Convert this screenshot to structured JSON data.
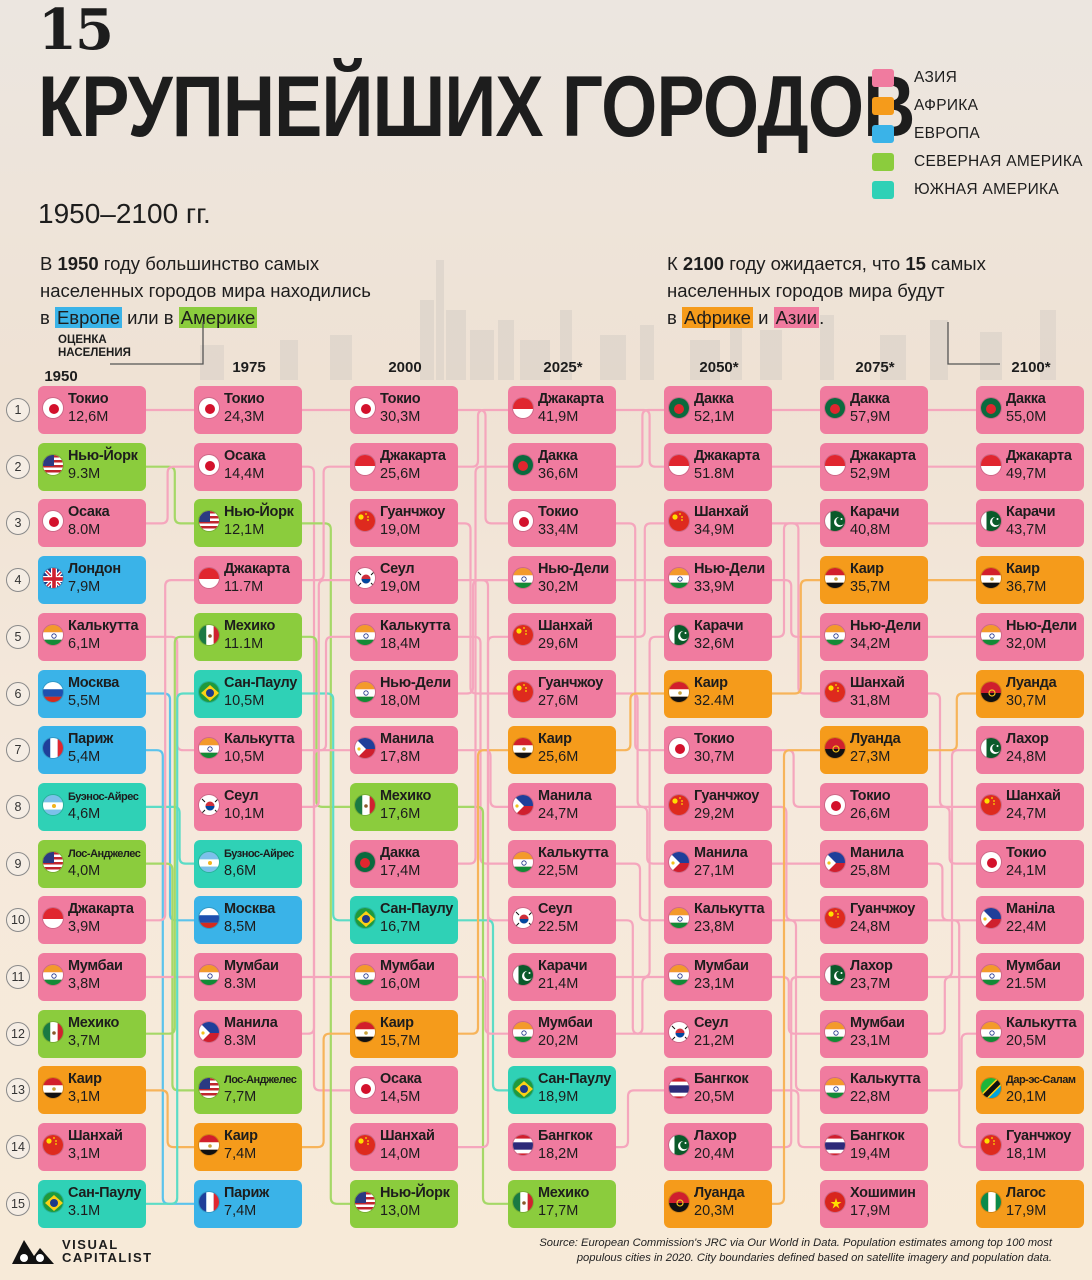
{
  "header": {
    "number": "15",
    "title": "КРУПНЕЙШИХ ГОРОДОВ",
    "years": "1950–2100 гг.",
    "intro_left": {
      "t1": "В ",
      "b1": "1950",
      "t2": " году большинство самых",
      "line2": "населенных городов мира находились",
      "t3": "в ",
      "hl1": "Европе",
      "t4": " или в ",
      "hl2": "Америке"
    },
    "intro_right": {
      "t1": "К ",
      "b1": "2100",
      "t2": " году ожидается, что ",
      "b2": "15",
      "t3": " самых",
      "line2": "населенных городов мира будут",
      "t4": "в ",
      "hl1": "Африке",
      "t5": " и ",
      "hl2": "Азии",
      "t6": "."
    }
  },
  "legend": [
    {
      "label": "АЗИЯ",
      "color": "#f07b9f"
    },
    {
      "label": "АФРИКА",
      "color": "#f59b1b"
    },
    {
      "label": "ЕВРОПА",
      "color": "#3ab3e8"
    },
    {
      "label": "СЕВЕРНАЯ АМЕРИКА",
      "color": "#8bcc3d"
    },
    {
      "label": "ЮЖНАЯ АМЕРИКА",
      "color": "#2fd1b6"
    }
  ],
  "estimate_label": "ОЦЕНКА\nНАСЕЛЕНИЯ",
  "ranks": [
    "1",
    "2",
    "3",
    "4",
    "5",
    "6",
    "7",
    "8",
    "9",
    "10",
    "11",
    "12",
    "13",
    "14",
    "15"
  ],
  "columns": [
    {
      "year": "1950",
      "cities": [
        {
          "name": "Токио",
          "value": "12,6M",
          "region": "asia",
          "flag": "jp"
        },
        {
          "name": "Нью-Йорк",
          "value": "9.3M",
          "region": "na",
          "flag": "us"
        },
        {
          "name": "Осака",
          "value": "8.0M",
          "region": "asia",
          "flag": "jp"
        },
        {
          "name": "Лондон",
          "value": "7,9M",
          "region": "eu",
          "flag": "gb"
        },
        {
          "name": "Калькутта",
          "value": "6,1M",
          "region": "asia",
          "flag": "in"
        },
        {
          "name": "Москва",
          "value": "5,5M",
          "region": "eu",
          "flag": "ru"
        },
        {
          "name": "Париж",
          "value": "5,4M",
          "region": "eu",
          "flag": "fr"
        },
        {
          "name": "Буэнос-Айрес",
          "value": "4,6M",
          "region": "sa",
          "flag": "ar"
        },
        {
          "name": "Лос-Анджелес",
          "value": "4,0M",
          "region": "na",
          "flag": "us"
        },
        {
          "name": "Джакарта",
          "value": "3,9M",
          "region": "asia",
          "flag": "id"
        },
        {
          "name": "Мумбаи",
          "value": "3,8M",
          "region": "asia",
          "flag": "in"
        },
        {
          "name": "Мехико",
          "value": "3,7M",
          "region": "na",
          "flag": "mx"
        },
        {
          "name": "Каир",
          "value": "3,1M",
          "region": "af",
          "flag": "eg"
        },
        {
          "name": "Шанхай",
          "value": "3,1M",
          "region": "asia",
          "flag": "cn"
        },
        {
          "name": "Сан-Паулу",
          "value": "3.1M",
          "region": "sa",
          "flag": "br"
        }
      ]
    },
    {
      "year": "1975",
      "cities": [
        {
          "name": "Токио",
          "value": "24,3M",
          "region": "asia",
          "flag": "jp"
        },
        {
          "name": "Осака",
          "value": "14,4M",
          "region": "asia",
          "flag": "jp"
        },
        {
          "name": "Нью-Йорк",
          "value": "12,1M",
          "region": "na",
          "flag": "us"
        },
        {
          "name": "Джакарта",
          "value": "11.7M",
          "region": "asia",
          "flag": "id"
        },
        {
          "name": "Мехико",
          "value": "11.1M",
          "region": "na",
          "flag": "mx"
        },
        {
          "name": "Сан-Паулу",
          "value": "10,5M",
          "region": "sa",
          "flag": "br"
        },
        {
          "name": "Калькутта",
          "value": "10,5M",
          "region": "asia",
          "flag": "in"
        },
        {
          "name": "Сеул",
          "value": "10,1M",
          "region": "asia",
          "flag": "kr"
        },
        {
          "name": "Бузнос-Айрес",
          "value": "8,6M",
          "region": "sa",
          "flag": "ar"
        },
        {
          "name": "Москва",
          "value": "8,5M",
          "region": "eu",
          "flag": "ru"
        },
        {
          "name": "Мумбаи",
          "value": "8.3M",
          "region": "asia",
          "flag": "in"
        },
        {
          "name": "Манила",
          "value": "8.3M",
          "region": "asia",
          "flag": "ph"
        },
        {
          "name": "Лос-Анджелес",
          "value": "7,7M",
          "region": "na",
          "flag": "us"
        },
        {
          "name": "Каир",
          "value": "7,4M",
          "region": "af",
          "flag": "eg"
        },
        {
          "name": "Париж",
          "value": "7,4M",
          "region": "eu",
          "flag": "fr"
        }
      ]
    },
    {
      "year": "2000",
      "cities": [
        {
          "name": "Токио",
          "value": "30,3M",
          "region": "asia",
          "flag": "jp"
        },
        {
          "name": "Джакарта",
          "value": "25,6M",
          "region": "asia",
          "flag": "id"
        },
        {
          "name": "Гуанчжоу",
          "value": "19,0M",
          "region": "asia",
          "flag": "cn"
        },
        {
          "name": "Сеул",
          "value": "19,0M",
          "region": "asia",
          "flag": "kr"
        },
        {
          "name": "Калькутта",
          "value": "18,4M",
          "region": "asia",
          "flag": "in"
        },
        {
          "name": "Нью-Дели",
          "value": "18,0M",
          "region": "asia",
          "flag": "in"
        },
        {
          "name": "Манила",
          "value": "17,8M",
          "region": "asia",
          "flag": "ph"
        },
        {
          "name": "Мехико",
          "value": "17,6M",
          "region": "na",
          "flag": "mx"
        },
        {
          "name": "Дакка",
          "value": "17,4M",
          "region": "asia",
          "flag": "bd"
        },
        {
          "name": "Сан-Паулу",
          "value": "16,7M",
          "region": "sa",
          "flag": "br"
        },
        {
          "name": "Мумбаи",
          "value": "16,0M",
          "region": "asia",
          "flag": "in"
        },
        {
          "name": "Каир",
          "value": "15,7M",
          "region": "af",
          "flag": "eg"
        },
        {
          "name": "Осака",
          "value": "14,5M",
          "region": "asia",
          "flag": "jp"
        },
        {
          "name": "Шанхай",
          "value": "14,0M",
          "region": "asia",
          "flag": "cn"
        },
        {
          "name": "Нью-Йорк",
          "value": "13,0M",
          "region": "na",
          "flag": "us"
        }
      ]
    },
    {
      "year": "2025*",
      "cities": [
        {
          "name": "Джакарта",
          "value": "41,9M",
          "region": "asia",
          "flag": "id"
        },
        {
          "name": "Дакка",
          "value": "36,6M",
          "region": "asia",
          "flag": "bd"
        },
        {
          "name": "Токио",
          "value": "33,4M",
          "region": "asia",
          "flag": "jp"
        },
        {
          "name": "Нью-Дели",
          "value": "30,2M",
          "region": "asia",
          "flag": "in"
        },
        {
          "name": "Шанхай",
          "value": "29,6M",
          "region": "asia",
          "flag": "cn"
        },
        {
          "name": "Гуанчжоу",
          "value": "27,6M",
          "region": "asia",
          "flag": "cn"
        },
        {
          "name": "Каир",
          "value": "25,6M",
          "region": "af",
          "flag": "eg"
        },
        {
          "name": "Манила",
          "value": "24,7M",
          "region": "asia",
          "flag": "ph"
        },
        {
          "name": "Калькутта",
          "value": "22,5M",
          "region": "asia",
          "flag": "in"
        },
        {
          "name": "Сеул",
          "value": "22.5M",
          "region": "asia",
          "flag": "kr"
        },
        {
          "name": "Карачи",
          "value": "21,4M",
          "region": "asia",
          "flag": "pk"
        },
        {
          "name": "Мумбаи",
          "value": "20,2M",
          "region": "asia",
          "flag": "in"
        },
        {
          "name": "Сан-Паулу",
          "value": "18,9M",
          "region": "sa",
          "flag": "br"
        },
        {
          "name": "Бангкок",
          "value": "18,2M",
          "region": "asia",
          "flag": "th"
        },
        {
          "name": "Мехико",
          "value": "17,7M",
          "region": "na",
          "flag": "mx"
        }
      ]
    },
    {
      "year": "2050*",
      "cities": [
        {
          "name": "Дакка",
          "value": "52,1M",
          "region": "asia",
          "flag": "bd"
        },
        {
          "name": "Джакарта",
          "value": "51.8M",
          "region": "asia",
          "flag": "id"
        },
        {
          "name": "Шанхай",
          "value": "34,9M",
          "region": "asia",
          "flag": "cn"
        },
        {
          "name": "Нью-Дели",
          "value": "33,9M",
          "region": "asia",
          "flag": "in"
        },
        {
          "name": "Карачи",
          "value": "32,6M",
          "region": "asia",
          "flag": "pk"
        },
        {
          "name": "Каир",
          "value": "32.4M",
          "region": "af",
          "flag": "eg"
        },
        {
          "name": "Токио",
          "value": "30,7M",
          "region": "asia",
          "flag": "jp"
        },
        {
          "name": "Гуанчжоу",
          "value": "29,2M",
          "region": "asia",
          "flag": "cn"
        },
        {
          "name": "Манила",
          "value": "27,1M",
          "region": "asia",
          "flag": "ph"
        },
        {
          "name": "Калькутта",
          "value": "23,8M",
          "region": "asia",
          "flag": "in"
        },
        {
          "name": "Мумбаи",
          "value": "23,1M",
          "region": "asia",
          "flag": "in"
        },
        {
          "name": "Сеул",
          "value": "21,2M",
          "region": "asia",
          "flag": "kr"
        },
        {
          "name": "Бангкок",
          "value": "20,5M",
          "region": "asia",
          "flag": "th"
        },
        {
          "name": "Лахор",
          "value": "20,4M",
          "region": "asia",
          "flag": "pk"
        },
        {
          "name": "Луанда",
          "value": "20,3M",
          "region": "af",
          "flag": "ao"
        }
      ]
    },
    {
      "year": "2075*",
      "cities": [
        {
          "name": "Дакка",
          "value": "57,9M",
          "region": "asia",
          "flag": "bd"
        },
        {
          "name": "Джакарта",
          "value": "52,9M",
          "region": "asia",
          "flag": "id"
        },
        {
          "name": "Карачи",
          "value": "40,8M",
          "region": "asia",
          "flag": "pk"
        },
        {
          "name": "Каир",
          "value": "35,7M",
          "region": "af",
          "flag": "eg"
        },
        {
          "name": "Нью-Дели",
          "value": "34,2M",
          "region": "asia",
          "flag": "in"
        },
        {
          "name": "Шанхай",
          "value": "31,8M",
          "region": "asia",
          "flag": "cn"
        },
        {
          "name": "Луанда",
          "value": "27,3M",
          "region": "af",
          "flag": "ao"
        },
        {
          "name": "Токио",
          "value": "26,6M",
          "region": "asia",
          "flag": "jp"
        },
        {
          "name": "Манила",
          "value": "25,8M",
          "region": "asia",
          "flag": "ph"
        },
        {
          "name": "Гуанчжоу",
          "value": "24,8M",
          "region": "asia",
          "flag": "cn"
        },
        {
          "name": "Лахор",
          "value": "23,7M",
          "region": "asia",
          "flag": "pk"
        },
        {
          "name": "Мумбаи",
          "value": "23,1M",
          "region": "asia",
          "flag": "in"
        },
        {
          "name": "Калькутта",
          "value": "22,8M",
          "region": "asia",
          "flag": "in"
        },
        {
          "name": "Бангкок",
          "value": "19,4M",
          "region": "asia",
          "flag": "th"
        },
        {
          "name": "Хошимин",
          "value": "17,9M",
          "region": "asia",
          "flag": "vn"
        }
      ]
    },
    {
      "year": "2100*",
      "cities": [
        {
          "name": "Дакка",
          "value": "55,0M",
          "region": "asia",
          "flag": "bd"
        },
        {
          "name": "Джакарта",
          "value": "49,7M",
          "region": "asia",
          "flag": "id"
        },
        {
          "name": "Карачи",
          "value": "43,7M",
          "region": "asia",
          "flag": "pk"
        },
        {
          "name": "Каир",
          "value": "36,7M",
          "region": "af",
          "flag": "eg"
        },
        {
          "name": "Нью-Дели",
          "value": "32,0M",
          "region": "asia",
          "flag": "in"
        },
        {
          "name": "Луанда",
          "value": "30,7M",
          "region": "af",
          "flag": "ao"
        },
        {
          "name": "Лахор",
          "value": "24,8M",
          "region": "asia",
          "flag": "pk"
        },
        {
          "name": "Шанхай",
          "value": "24,7M",
          "region": "asia",
          "flag": "cn"
        },
        {
          "name": "Токио",
          "value": "24,1M",
          "region": "asia",
          "flag": "jp"
        },
        {
          "name": "Маніла",
          "value": "22,4M",
          "region": "asia",
          "flag": "ph"
        },
        {
          "name": "Мумбаи",
          "value": "21.5M",
          "region": "asia",
          "flag": "in"
        },
        {
          "name": "Калькутта",
          "value": "20,5M",
          "region": "asia",
          "flag": "in"
        },
        {
          "name": "Дар-эс-Салам",
          "value": "20,1M",
          "region": "af",
          "flag": "tz"
        },
        {
          "name": "Гуанчжоу",
          "value": "18,1M",
          "region": "asia",
          "flag": "cn"
        },
        {
          "name": "Лагос",
          "value": "17,9M",
          "region": "af",
          "flag": "ng"
        }
      ]
    }
  ],
  "region_colors": {
    "asia": "#f07b9f",
    "af": "#f59b1b",
    "eu": "#3ab3e8",
    "na": "#8bcc3d",
    "sa": "#2fd1b6"
  },
  "line_colors": {
    "asia": "#f5a6bd",
    "af": "#f7b45a",
    "eu": "#5cc3ec",
    "na": "#a5d867",
    "sa": "#5cdcc6"
  },
  "source": {
    "line1": "Source: European Commission's JRC via Our World in Data. Population estimates among top 100 most",
    "line2": "populous cities in 2020. City boundaries defined based on satellite imagery and population data."
  },
  "brand": {
    "line1": "VISUAL",
    "line2": "CAPITALIST"
  }
}
